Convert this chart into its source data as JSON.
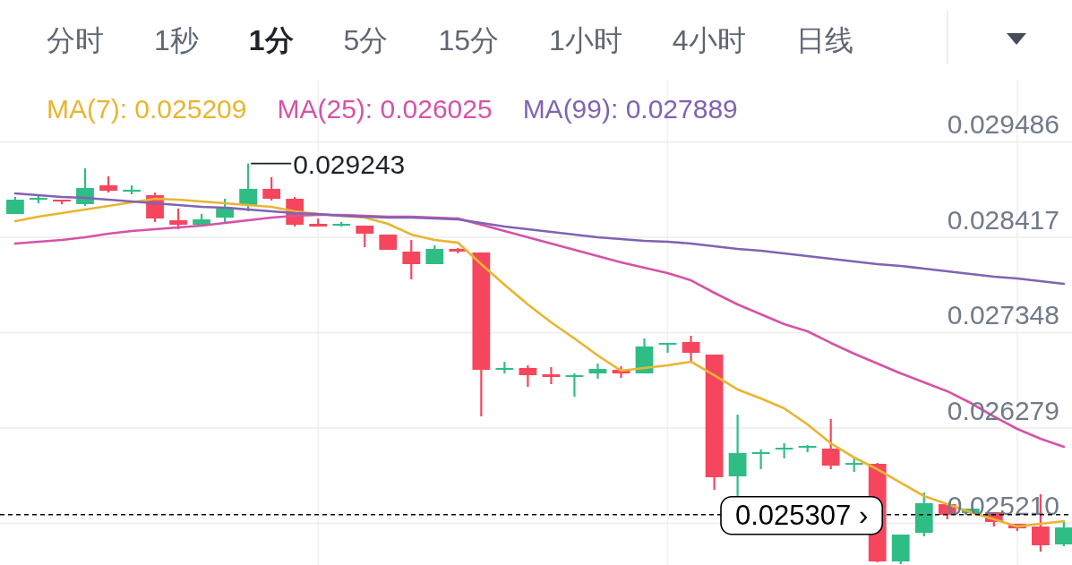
{
  "chart_data": {
    "type": "candlestick",
    "categories": [
      null,
      null,
      null,
      null,
      null,
      null,
      null,
      null,
      null,
      null,
      null,
      null,
      null,
      null,
      null,
      null,
      null,
      null,
      null,
      null,
      null,
      null,
      null,
      null,
      null,
      null,
      null,
      null,
      null,
      null,
      null,
      null,
      null,
      null,
      null,
      null,
      null,
      null,
      null,
      null,
      null,
      null,
      null,
      null,
      null,
      null
    ],
    "ohlc": [
      [
        0.028677,
        0.028868,
        0.028677,
        0.028838
      ],
      [
        0.028848,
        0.028878,
        0.028798,
        0.028858
      ],
      [
        0.028838,
        0.028838,
        0.028788,
        0.028818
      ],
      [
        0.028788,
        0.029189,
        0.028768,
        0.028969
      ],
      [
        0.028999,
        0.029099,
        0.028918,
        0.028938
      ],
      [
        0.028928,
        0.028999,
        0.028898,
        0.028949
      ],
      [
        0.028888,
        0.028918,
        0.028587,
        0.028627
      ],
      [
        0.028607,
        0.028738,
        0.028507,
        0.028557
      ],
      [
        0.028557,
        0.028677,
        0.028557,
        0.028617
      ],
      [
        0.028637,
        0.028848,
        0.028587,
        0.028738
      ],
      [
        0.028778,
        0.029243,
        0.028708,
        0.028959
      ],
      [
        0.028959,
        0.029089,
        0.028828,
        0.028848
      ],
      [
        0.028848,
        0.028868,
        0.028537,
        0.028557
      ],
      [
        0.028567,
        0.028627,
        0.028537,
        0.028537
      ],
      [
        0.028557,
        0.028587,
        0.028537,
        0.028567
      ],
      [
        0.028547,
        0.028547,
        0.028306,
        0.028457
      ],
      [
        0.028447,
        0.028447,
        0.028276,
        0.028276
      ],
      [
        0.028256,
        0.028386,
        0.027945,
        0.028115
      ],
      [
        0.028115,
        0.028326,
        0.028115,
        0.028286
      ],
      [
        0.028286,
        0.028296,
        0.028236,
        0.028256
      ],
      [
        0.028246,
        0.028246,
        0.026408,
        0.02693
      ],
      [
        0.02693,
        0.027021,
        0.02689,
        0.026951
      ],
      [
        0.026951,
        0.026981,
        0.02674,
        0.02687
      ],
      [
        0.02688,
        0.026961,
        0.02677,
        0.02685
      ],
      [
        0.02685,
        0.02689,
        0.026629,
        0.02687
      ],
      [
        0.02689,
        0.027001,
        0.02683,
        0.026941
      ],
      [
        0.02693,
        0.026971,
        0.02684,
        0.02689
      ],
      [
        0.02689,
        0.027282,
        0.02689,
        0.027192
      ],
      [
        0.027212,
        0.027232,
        0.027121,
        0.027232
      ],
      [
        0.027242,
        0.027312,
        0.027031,
        0.027121
      ],
      [
        0.027101,
        0.027101,
        0.025585,
        0.025726
      ],
      [
        0.025736,
        0.026428,
        0.025505,
        0.025997
      ],
      [
        0.025987,
        0.026037,
        0.025816,
        0.026007
      ],
      [
        0.026037,
        0.026107,
        0.025937,
        0.026057
      ],
      [
        0.026057,
        0.026087,
        0.026007,
        0.026077
      ],
      [
        0.026047,
        0.026378,
        0.025816,
        0.025856
      ],
      [
        0.025876,
        0.025937,
        0.025786,
        0.025886
      ],
      [
        0.025876,
        0.025886,
        0.024772,
        0.024782
      ],
      [
        0.024782,
        0.025083,
        0.024752,
        0.025083
      ],
      [
        0.025103,
        0.025555,
        0.025063,
        0.025435
      ],
      [
        0.025424,
        0.025424,
        0.025254,
        0.025304
      ],
      [
        0.025324,
        0.025374,
        0.025304,
        0.025374
      ],
      [
        0.025334,
        0.025334,
        0.025173,
        0.025224
      ],
      [
        0.025204,
        0.025204,
        0.025123,
        0.025153
      ],
      [
        0.025173,
        0.025535,
        0.024892,
        0.024963
      ],
      [
        0.024973,
        0.025224,
        0.024953,
        0.025163
      ]
    ],
    "colors": [
      "#2ebd85",
      "#2ebd85",
      "#f6465d",
      "#2ebd85",
      "#f6465d",
      "#2ebd85",
      "#f6465d",
      "#f6465d",
      "#2ebd85",
      "#2ebd85",
      "#2ebd85",
      "#f6465d",
      "#f6465d",
      "#f6465d",
      "#2ebd85",
      "#f6465d",
      "#f6465d",
      "#f6465d",
      "#2ebd85",
      "#f6465d",
      "#f6465d",
      "#2ebd85",
      "#f6465d",
      "#f6465d",
      "#2ebd85",
      "#2ebd85",
      "#f6465d",
      "#2ebd85",
      "#2ebd85",
      "#f6465d",
      "#f6465d",
      "#2ebd85",
      "#2ebd85",
      "#2ebd85",
      "#2ebd85",
      "#f6465d",
      "#2ebd85",
      "#f6465d",
      "#2ebd85",
      "#2ebd85",
      "#f6465d",
      "#2ebd85",
      "#f6465d",
      "#f6465d",
      "#f6465d",
      "#2ebd85"
    ],
    "series": [
      {
        "name": "MA(7): 0.025209",
        "type": "line",
        "color": "#e9b530",
        "values": [
          0.028597,
          0.028647,
          0.028687,
          0.028728,
          0.028768,
          0.028808,
          0.028848,
          0.028838,
          0.028818,
          0.028798,
          0.028778,
          0.028758,
          0.028708,
          0.028677,
          0.028657,
          0.028637,
          0.028567,
          0.028447,
          0.028386,
          0.028356,
          0.028115,
          0.027884,
          0.027663,
          0.027463,
          0.027282,
          0.027091,
          0.02692,
          0.026951,
          0.026981,
          0.027021,
          0.02687,
          0.02671,
          0.026609,
          0.026499,
          0.026318,
          0.026107,
          0.025947,
          0.025816,
          0.025665,
          0.025515,
          0.025424,
          0.025334,
          0.025254,
          0.025173,
          0.025204,
          0.025234
        ]
      },
      {
        "name": "MA(25): 0.026025",
        "type": "line",
        "color": "#d553a8",
        "values": [
          0.028346,
          0.028366,
          0.028386,
          0.028416,
          0.028457,
          0.028487,
          0.028507,
          0.028527,
          0.028547,
          0.028577,
          0.028607,
          0.028637,
          0.028657,
          0.028667,
          0.028667,
          0.028657,
          0.028647,
          0.028647,
          0.028637,
          0.028627,
          0.028557,
          0.028487,
          0.028416,
          0.028346,
          0.028276,
          0.028206,
          0.028135,
          0.028075,
          0.028015,
          0.027934,
          0.027794,
          0.027663,
          0.027553,
          0.027443,
          0.027362,
          0.027232,
          0.027111,
          0.027001,
          0.02689,
          0.02679,
          0.02669,
          0.026559,
          0.026408,
          0.026268,
          0.026157,
          0.026067
        ]
      },
      {
        "name": "MA(99): 0.027889",
        "type": "line",
        "color": "#8063b3",
        "values": [
          0.028908,
          0.028888,
          0.028868,
          0.028858,
          0.028838,
          0.028818,
          0.028798,
          0.028778,
          0.028758,
          0.028748,
          0.028728,
          0.028708,
          0.028687,
          0.028677,
          0.028657,
          0.028647,
          0.028637,
          0.028637,
          0.028627,
          0.028617,
          0.028577,
          0.028537,
          0.028507,
          0.028477,
          0.028447,
          0.028416,
          0.028396,
          0.028376,
          0.028366,
          0.028346,
          0.028316,
          0.028286,
          0.028266,
          0.028236,
          0.028206,
          0.028175,
          0.028145,
          0.028115,
          0.028095,
          0.028065,
          0.028035,
          0.028005,
          0.027975,
          0.027955,
          0.027924,
          0.027894
        ]
      }
    ],
    "ylim": [
      0.024742,
      0.030173
    ],
    "yticks": [
      0.029486,
      0.028417,
      0.027348,
      0.026279,
      {
        "value": 0.02521,
        "label": "0.025210"
      }
    ],
    "tick_labels": "y",
    "grid": true,
    "legend": "top left",
    "ref_lines": [
      {
        "axis": "y",
        "value": 0.025307,
        "label": "0.025307 ›",
        "color": "#000000",
        "line_style": "dashed"
      }
    ],
    "annotations": [
      "分时",
      "1秒",
      "1分",
      "5分",
      "15分",
      "1小时",
      "4小时",
      "日线",
      "0.029243"
    ]
  }
}
